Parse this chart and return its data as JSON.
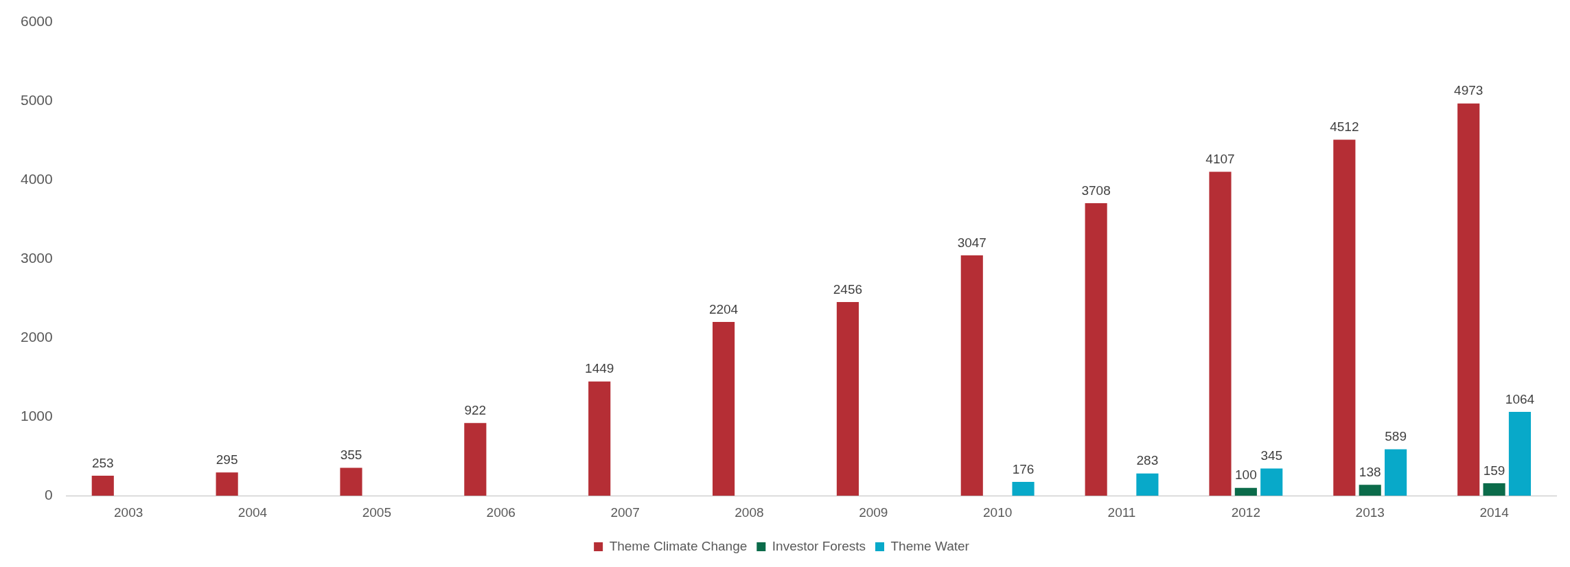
{
  "chart_data": {
    "type": "bar",
    "categories": [
      "2003",
      "2004",
      "2005",
      "2006",
      "2007",
      "2008",
      "2009",
      "2010",
      "2011",
      "2012",
      "2013",
      "2014"
    ],
    "series": [
      {
        "name": "Theme Climate Change",
        "color": "#b52e35",
        "values": [
          253,
          295,
          355,
          922,
          1449,
          2204,
          2456,
          3047,
          3708,
          4107,
          4512,
          4973
        ]
      },
      {
        "name": "Investor Forests",
        "color": "#0b6b4a",
        "values": [
          null,
          null,
          null,
          null,
          null,
          null,
          null,
          null,
          null,
          100,
          138,
          159
        ]
      },
      {
        "name": "Theme Water",
        "color": "#08a9c9",
        "values": [
          null,
          null,
          null,
          null,
          null,
          null,
          null,
          176,
          283,
          345,
          589,
          1064
        ]
      }
    ],
    "ylim": [
      0,
      6000
    ],
    "yticks": [
      0,
      1000,
      2000,
      3000,
      4000,
      5000,
      6000
    ],
    "grid": false,
    "legend": "bottom",
    "data_labels": true
  }
}
